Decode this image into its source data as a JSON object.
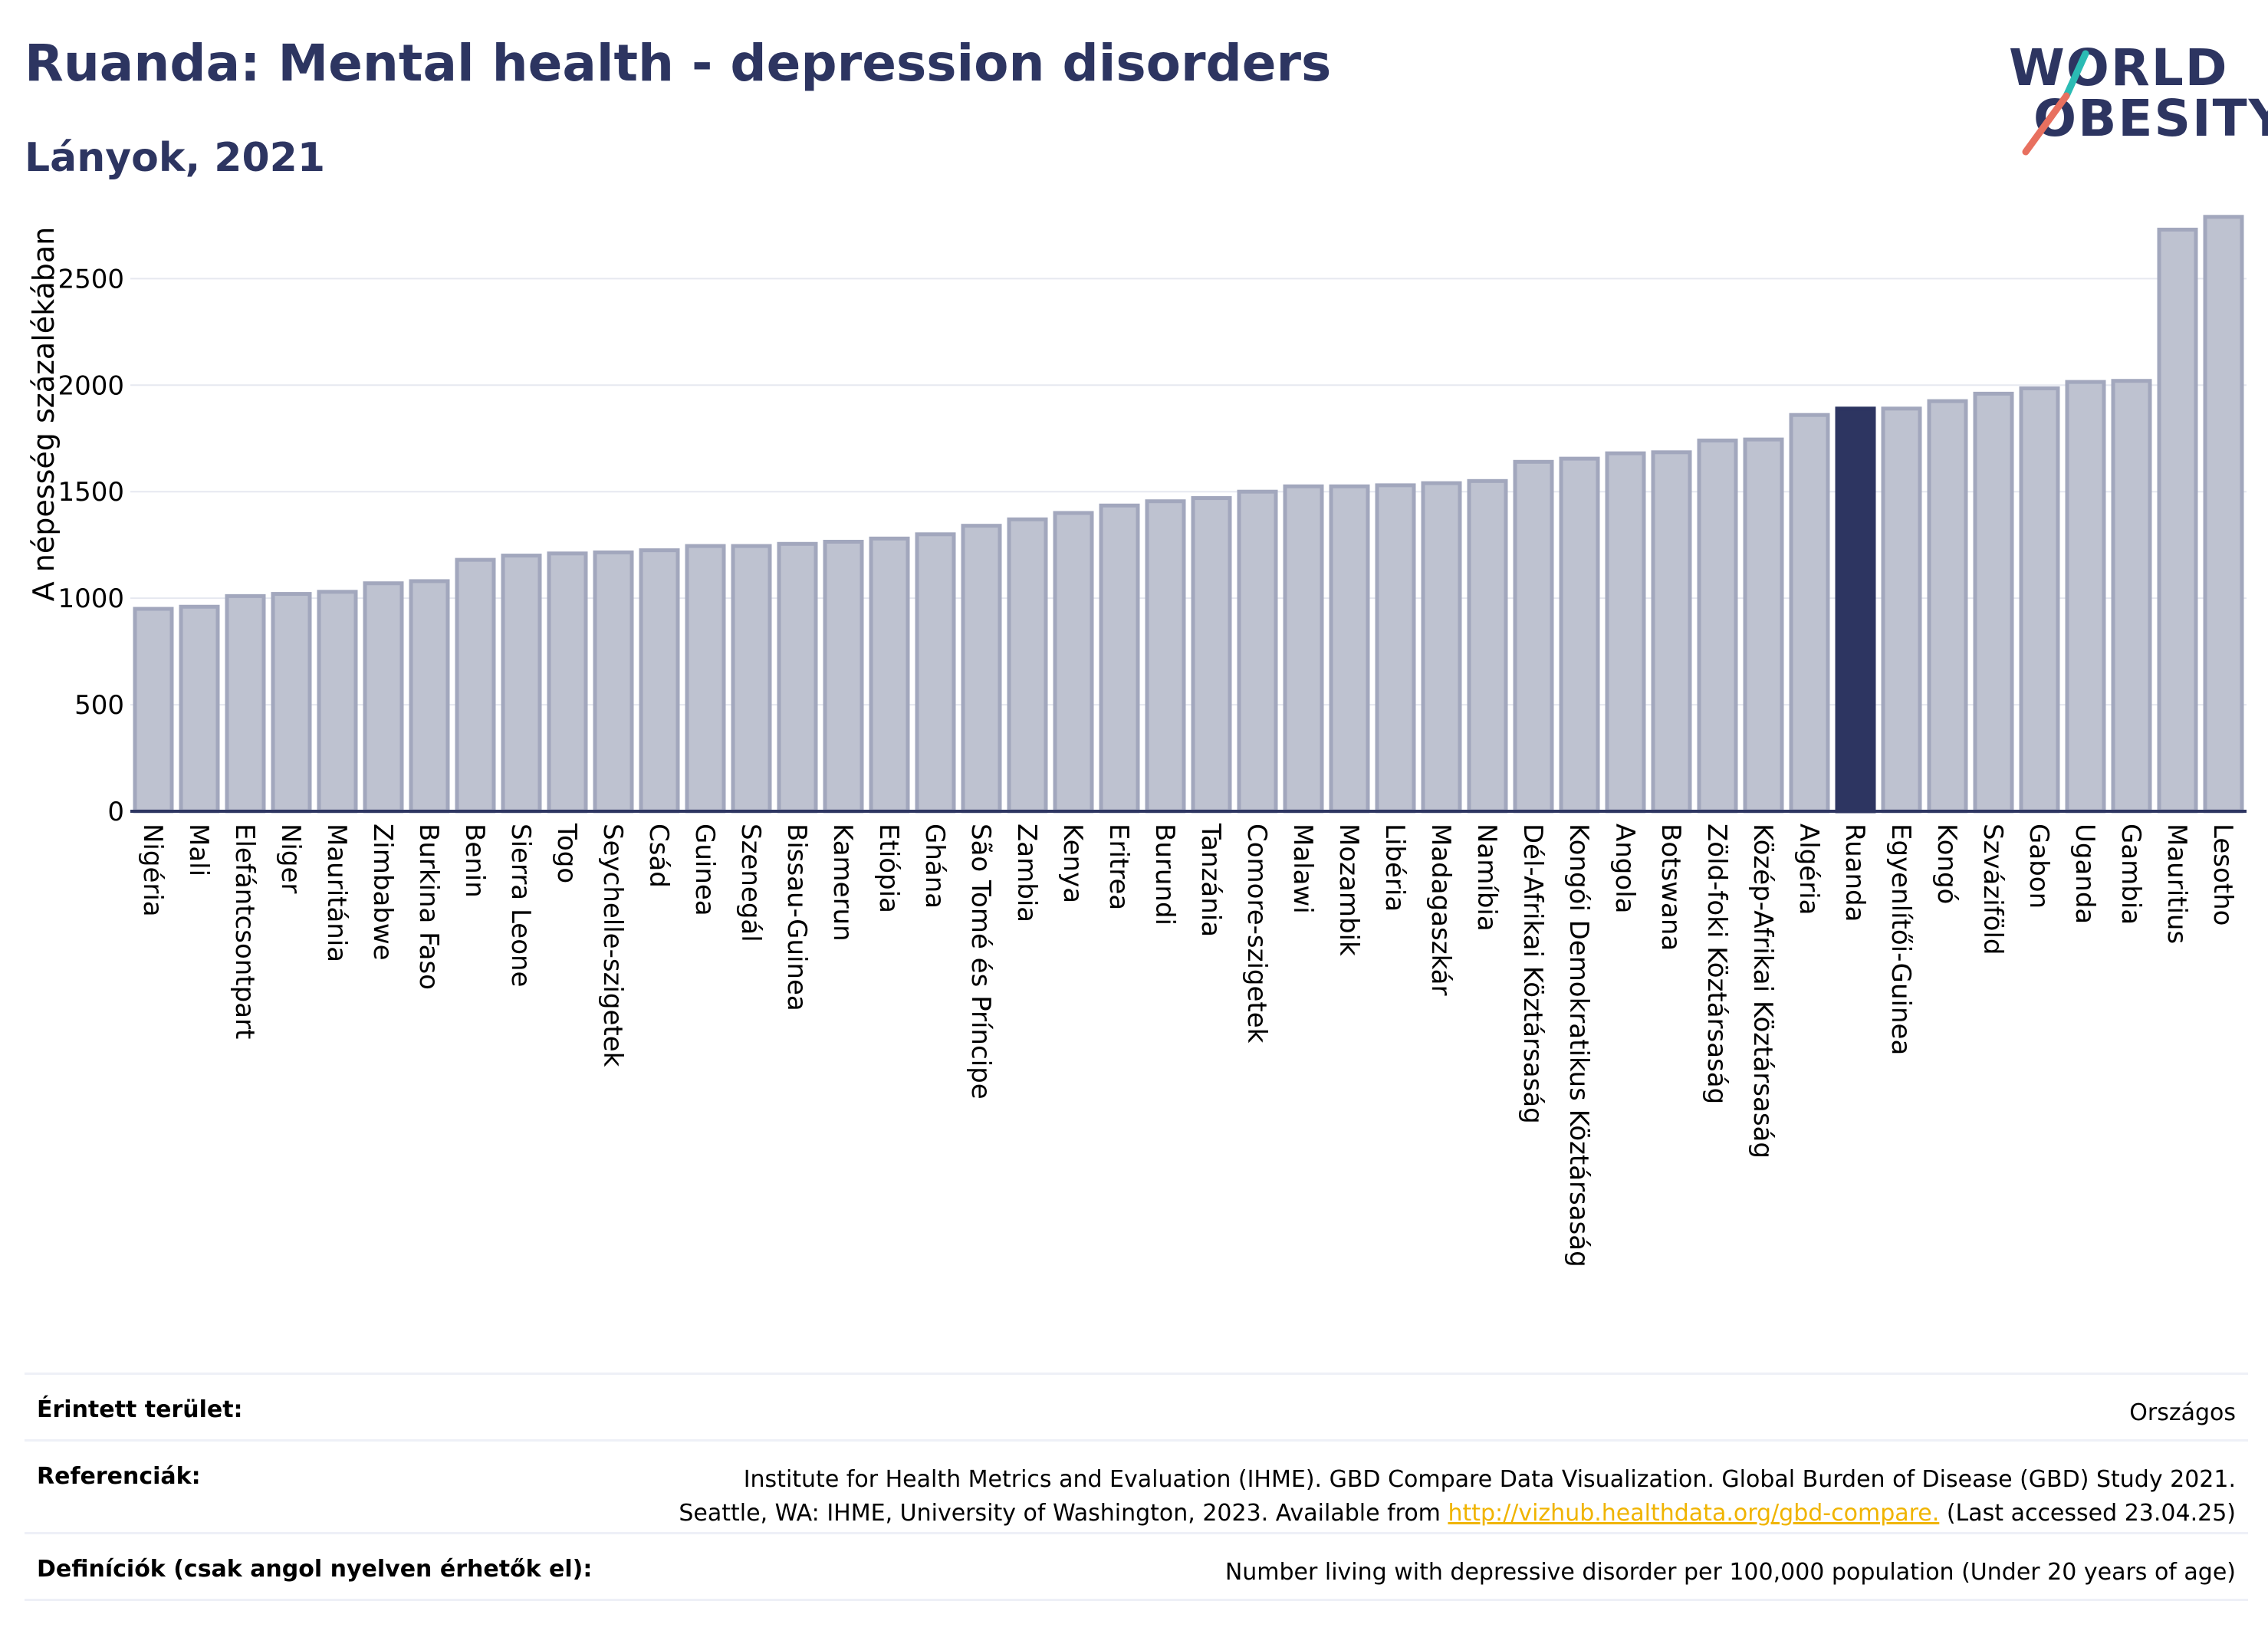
{
  "header": {
    "title": "Ruanda: Mental health - depression disorders",
    "subtitle": "Lányok, 2021"
  },
  "logo": {
    "line1": "WORLD",
    "line2": "OBESITY",
    "colors": {
      "text": "#2d3561",
      "slash_top": "#2bbbb4",
      "slash_bottom": "#e8705f"
    }
  },
  "colors": {
    "bar": "#bec2d0",
    "bar_stroke": "#a2a7bd",
    "highlight": "#2d3561",
    "grid": "#e6e8f0",
    "axis": "#2d3561"
  },
  "chart_data": {
    "type": "bar",
    "title": "Ruanda: Mental health - depression disorders",
    "subtitle": "Lányok, 2021",
    "ylabel": "A népesség százalékában",
    "xlabel": "",
    "ylim": [
      0,
      2800
    ],
    "yticks": [
      0,
      500,
      1000,
      1500,
      2000,
      2500
    ],
    "grid": true,
    "highlight": "Ruanda",
    "categories": [
      "Nigéria",
      "Mali",
      "Elefántcsontpart",
      "Niger",
      "Mauritánia",
      "Zimbabwe",
      "Burkina Faso",
      "Benin",
      "Sierra Leone",
      "Togo",
      "Seychelle-szigetek",
      "Csád",
      "Guinea",
      "Szenegál",
      "Bissau-Guinea",
      "Kamerun",
      "Etiópia",
      "Ghána",
      "São Tomé és Príncipe",
      "Zambia",
      "Kenya",
      "Eritrea",
      "Burundi",
      "Tanzánia",
      "Comore-szigetek",
      "Malawi",
      "Mozambik",
      "Libéria",
      "Madagaszkár",
      "Namíbia",
      "Dél-Afrikai Köztársaság",
      "Kongói Demokratikus Köztársaság",
      "Angola",
      "Botswana",
      "Zöld-foki Köztársaság",
      "Közép-Afrikai Köztársaság",
      "Algéria",
      "Ruanda",
      "Egyenlítői-Guinea",
      "Kongó",
      "Szváziföld",
      "Gabon",
      "Uganda",
      "Gambia",
      "Mauritius",
      "Lesotho"
    ],
    "values": [
      950,
      960,
      1010,
      1020,
      1030,
      1070,
      1080,
      1180,
      1200,
      1210,
      1215,
      1225,
      1245,
      1245,
      1255,
      1265,
      1280,
      1300,
      1340,
      1370,
      1400,
      1435,
      1455,
      1470,
      1500,
      1525,
      1525,
      1530,
      1540,
      1550,
      1640,
      1655,
      1680,
      1685,
      1740,
      1745,
      1860,
      1890,
      1890,
      1925,
      1960,
      1985,
      2015,
      2020,
      2730,
      2790
    ]
  },
  "footer": {
    "area_label": "Érintett terület:",
    "area_value": "Országos",
    "ref_label": "Referenciák:",
    "ref_line1": "Institute for Health Metrics and Evaluation (IHME). GBD Compare Data Visualization. Global Burden of Disease (GBD) Study 2021.",
    "ref_line2_pre": "Seattle, WA: IHME, University of Washington, 2023. Available from ",
    "ref_link": "http://vizhub.healthdata.org/gbd-compare.",
    "ref_line2_post": " (Last accessed 23.04.25)",
    "def_label": "Definíciók (csak angol nyelven érhetők el):",
    "def_value": "Number living with depressive disorder per 100,000 population (Under 20 years of age)"
  }
}
